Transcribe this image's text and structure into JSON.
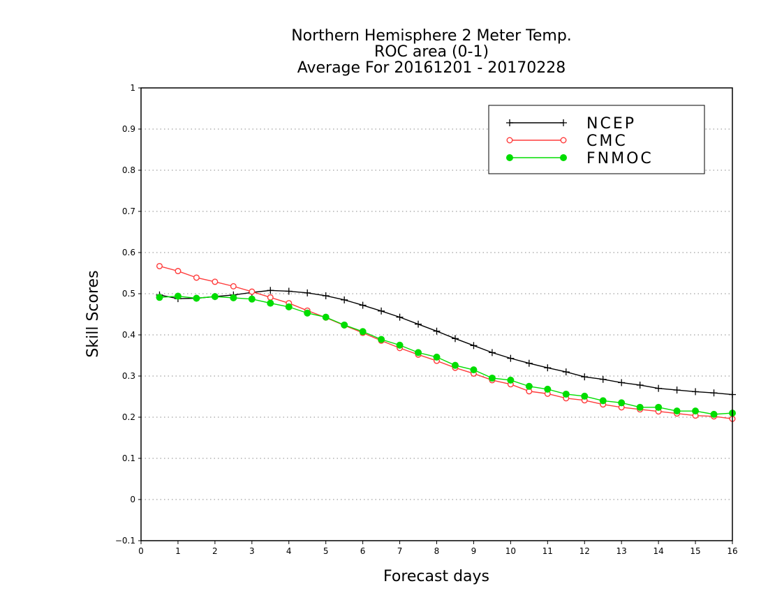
{
  "chart_data": {
    "type": "line",
    "title": [
      "Northern Hemisphere 2 Meter Temp.",
      "ROC area (0-1)",
      "Average For 20161201 - 20170228"
    ],
    "xlabel": "Forecast days",
    "ylabel": "Skill Scores",
    "xlim": [
      0,
      16
    ],
    "ylim": [
      -0.1,
      1
    ],
    "xticks": [
      "0",
      "1",
      "2",
      "3",
      "4",
      "5",
      "6",
      "7",
      "8",
      "9",
      "10",
      "11",
      "12",
      "13",
      "14",
      "15",
      "16"
    ],
    "yticks": [
      "−0.1",
      "0",
      "0.1",
      "0.2",
      "0.3",
      "0.4",
      "0.5",
      "0.6",
      "0.7",
      "0.8",
      "0.9",
      "1"
    ],
    "grid": "horizontal dotted",
    "legend_position": "top-right",
    "x": [
      0.5,
      1,
      1.5,
      2,
      2.5,
      3,
      3.5,
      4,
      4.5,
      5,
      5.5,
      6,
      6.5,
      7,
      7.5,
      8,
      8.5,
      9,
      9.5,
      10,
      10.5,
      11,
      11.5,
      12,
      12.5,
      13,
      13.5,
      14,
      14.5,
      15,
      15.5,
      16
    ],
    "series": [
      {
        "name": "NCEP",
        "color": "#000000",
        "marker": "plus",
        "values": [
          0.497,
          0.488,
          0.489,
          0.493,
          0.497,
          0.503,
          0.508,
          0.506,
          0.502,
          0.495,
          0.485,
          0.472,
          0.458,
          0.443,
          0.426,
          0.409,
          0.391,
          0.374,
          0.357,
          0.343,
          0.331,
          0.32,
          0.31,
          0.298,
          0.292,
          0.284,
          0.278,
          0.27,
          0.266,
          0.262,
          0.259,
          0.255
        ]
      },
      {
        "name": "CMC",
        "color": "#ff3b3b",
        "marker": "open-circle",
        "values": [
          0.567,
          0.555,
          0.539,
          0.529,
          0.518,
          0.505,
          0.491,
          0.477,
          0.459,
          0.442,
          0.423,
          0.405,
          0.386,
          0.368,
          0.352,
          0.337,
          0.32,
          0.306,
          0.29,
          0.28,
          0.263,
          0.257,
          0.246,
          0.241,
          0.231,
          0.224,
          0.219,
          0.214,
          0.209,
          0.204,
          0.202,
          0.196
        ]
      },
      {
        "name": "FNMOC",
        "color": "#00dd00",
        "marker": "filled-circle",
        "values": [
          0.491,
          0.494,
          0.489,
          0.493,
          0.49,
          0.487,
          0.477,
          0.468,
          0.453,
          0.443,
          0.424,
          0.408,
          0.389,
          0.375,
          0.357,
          0.346,
          0.326,
          0.315,
          0.295,
          0.29,
          0.275,
          0.268,
          0.256,
          0.251,
          0.24,
          0.235,
          0.224,
          0.224,
          0.215,
          0.215,
          0.207,
          0.21
        ]
      }
    ]
  }
}
